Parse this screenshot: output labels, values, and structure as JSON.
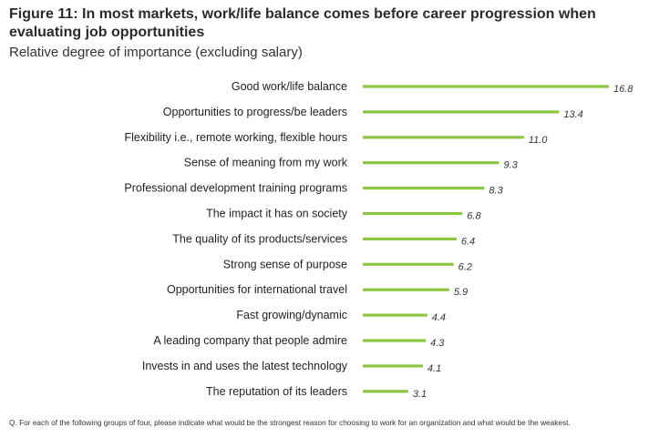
{
  "title": "Figure 11: In most markets, work/life balance comes before career progression when evaluating job opportunities",
  "subtitle": "Relative degree of importance (excluding salary)",
  "footnote": "Q. For each of the following groups of four, please indicate what would be the strongest reason for choosing to work for an organization and what would be the weakest.",
  "colors": {
    "bar": "#8dc63f",
    "label": "#222222",
    "value": "#333333"
  },
  "chart_data": {
    "type": "bar",
    "orientation": "horizontal",
    "title": "Figure 11: In most markets, work/life balance comes before career progression when evaluating job opportunities",
    "subtitle": "Relative degree of importance (excluding salary)",
    "xlabel": "",
    "ylabel": "",
    "xlim": [
      0,
      16.8
    ],
    "grid": false,
    "legend": "none",
    "categories": [
      "Good work/life balance",
      "Opportunities to progress/be leaders",
      "Flexibility i.e., remote working, flexible hours",
      "Sense of meaning from my work",
      "Professional development training programs",
      "The impact it has on society",
      "The quality of its products/services",
      "Strong sense of purpose",
      "Opportunities for international travel",
      "Fast growing/dynamic",
      "A leading company that people admire",
      "Invests in and uses the latest technology",
      "The reputation of its leaders"
    ],
    "values": [
      16.8,
      13.4,
      11.0,
      9.3,
      8.3,
      6.8,
      6.4,
      6.2,
      5.9,
      4.4,
      4.3,
      4.1,
      3.1
    ],
    "value_labels": [
      "16.8",
      "13.4",
      "11.0",
      "9.3",
      "8.3",
      "6.8",
      "6.4",
      "6.2",
      "5.9",
      "4.4",
      "4.3",
      "4.1",
      "3.1"
    ]
  }
}
